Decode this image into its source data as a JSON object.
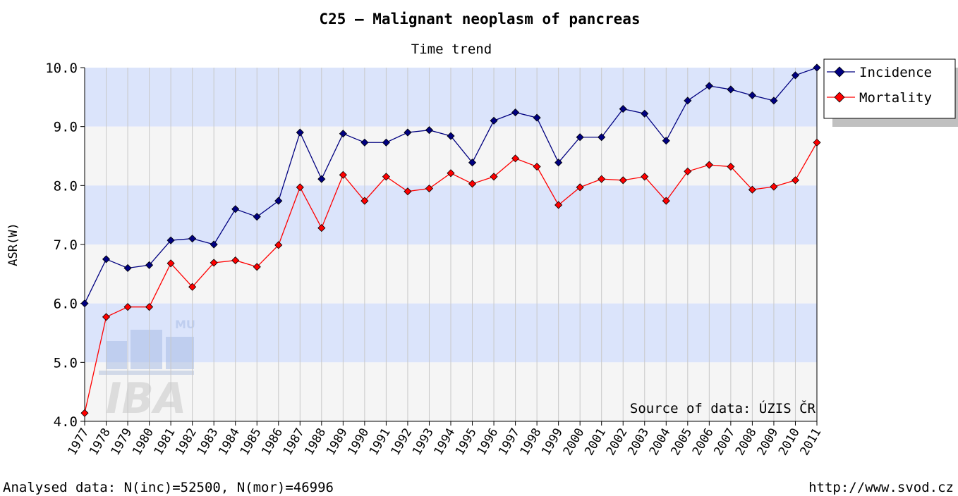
{
  "chart_data": {
    "type": "line",
    "title": "C25 – Malignant neoplasm of pancreas",
    "subtitle": "Time trend",
    "y_label": "ASR(W)",
    "annotation": "Source of data: ÚZIS ČR",
    "footer_left": "Analysed data: N(inc)=52500, N(mor)=46996",
    "footer_right": "http://www.svod.cz",
    "logo": {
      "text": "IBA",
      "sub": "MU"
    },
    "categories": [
      "1977",
      "1978",
      "1979",
      "1980",
      "1981",
      "1982",
      "1983",
      "1984",
      "1985",
      "1986",
      "1987",
      "1988",
      "1989",
      "1990",
      "1991",
      "1992",
      "1993",
      "1994",
      "1995",
      "1996",
      "1997",
      "1998",
      "1999",
      "2000",
      "2001",
      "2002",
      "2003",
      "2004",
      "2005",
      "2006",
      "2007",
      "2008",
      "2009",
      "2010",
      "2011"
    ],
    "series": [
      {
        "name": "Incidence",
        "color": "#000080",
        "values": [
          6.0,
          6.75,
          6.6,
          6.65,
          7.07,
          7.1,
          7.0,
          7.6,
          7.47,
          7.74,
          8.9,
          8.11,
          8.88,
          8.73,
          8.73,
          8.9,
          8.94,
          8.84,
          8.39,
          9.1,
          9.24,
          9.15,
          8.39,
          8.82,
          8.82,
          9.3,
          9.22,
          8.76,
          9.44,
          9.69,
          9.63,
          9.53,
          9.44,
          9.87,
          10.0
        ]
      },
      {
        "name": "Mortality",
        "color": "#ff0000",
        "values": [
          4.14,
          5.77,
          5.94,
          5.94,
          6.68,
          6.28,
          6.69,
          6.73,
          6.62,
          6.99,
          7.97,
          7.28,
          8.18,
          7.74,
          8.15,
          7.9,
          7.95,
          8.21,
          8.03,
          8.15,
          8.46,
          8.32,
          7.67,
          7.97,
          8.11,
          8.09,
          8.15,
          7.74,
          8.24,
          8.35,
          8.32,
          7.93,
          7.98,
          8.09,
          8.73
        ]
      }
    ],
    "ylim": [
      4,
      10
    ],
    "yticks": [
      {
        "value": 4,
        "label": "4.0"
      },
      {
        "value": 5,
        "label": "5.0"
      },
      {
        "value": 6,
        "label": "6.0"
      },
      {
        "value": 7,
        "label": "7.0"
      },
      {
        "value": 8,
        "label": "8.0"
      },
      {
        "value": 9,
        "label": "9.0"
      },
      {
        "value": 10,
        "label": "10.0"
      }
    ],
    "band_colors": [
      "#dbe4fb",
      "#f5f5f5"
    ],
    "grid": true,
    "legend": "upper right"
  }
}
